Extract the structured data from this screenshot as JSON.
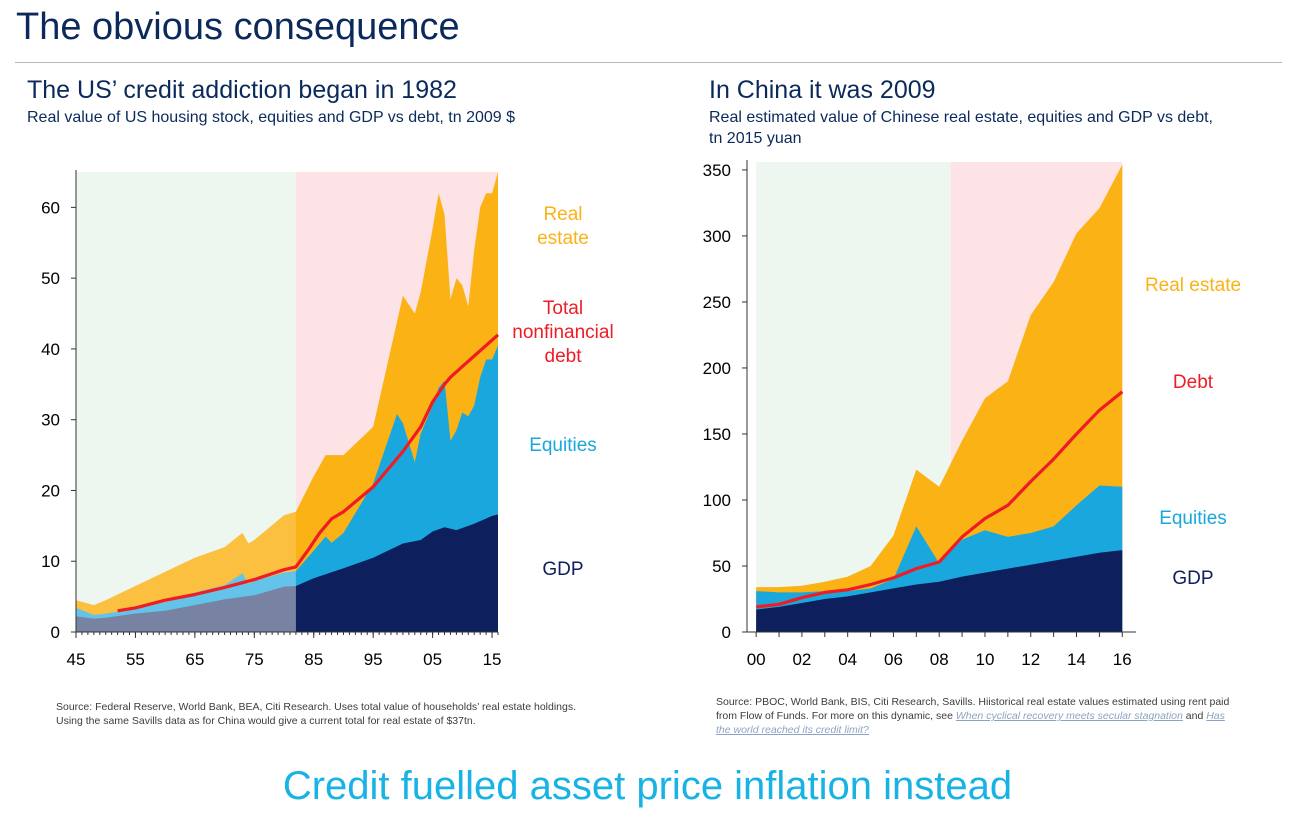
{
  "slide": {
    "title": "The obvious consequence",
    "takeaway": "Credit fuelled asset price inflation instead"
  },
  "us": {
    "title": "The US’ credit addiction began in 1982",
    "subtitle": "Real value of US housing stock, equities and GDP vs debt, tn 2009 $",
    "source": "Source: Federal Reserve, World Bank, BEA, Citi Research. Uses total value of households’ real estate holdings. Using the same Savills data as for China would give a current total for real estate of $37tn."
  },
  "china": {
    "title": "In China it was 2009",
    "subtitle": "Real estimated value of Chinese real  estate, equities and GDP vs debt, tn 2015 yuan",
    "source_text": "Source: PBOC, World Bank, BIS, Citi Research, Savills. Hiistorical real estate values estimated using rent paid from Flow of Funds. For more on this dynamic, see ",
    "source_link1": "When cyclical recovery meets secular stagnation",
    "source_and": " and ",
    "source_link2": "Has the world reached its credit limit?"
  },
  "colors": {
    "gdp": "#0d1f5c",
    "equities": "#1aa7dd",
    "real_estate": "#fbb215",
    "debt": "#ee1c25",
    "us_pre_bg": "#eef7ef",
    "us_post_bg": "#fde3e5",
    "text": "#0b2a5b",
    "takeaway": "#18b3e4"
  },
  "chart_data": [
    {
      "type": "area",
      "x_tick_labels": [
        "45",
        "55",
        "65",
        "75",
        "85",
        "95",
        "05",
        "15"
      ],
      "x_tick_years": [
        1945,
        1955,
        1965,
        1975,
        1985,
        1995,
        2005,
        2015
      ],
      "xlim": [
        1945,
        2016
      ],
      "ylim": [
        0,
        65
      ],
      "y_ticks": [
        0,
        10,
        20,
        30,
        40,
        50,
        60
      ],
      "shaded_periods": [
        {
          "from": 1945,
          "to": 1982,
          "color": "#eef7ef"
        },
        {
          "from": 1982,
          "to": 2016,
          "color": "#fde3e5"
        }
      ],
      "legend_labels": [
        {
          "series": "Real estate",
          "lines": [
            "Real",
            "estate"
          ],
          "color": "#fbb215"
        },
        {
          "series": "Total nonfinancial debt",
          "lines": [
            "Total",
            "nonfinancial",
            "debt"
          ],
          "color": "#ee1c25"
        },
        {
          "series": "Equities",
          "lines": [
            "Equities"
          ],
          "color": "#1aa7dd"
        },
        {
          "series": "GDP",
          "lines": [
            "GDP"
          ],
          "color": "#0d1f5c"
        }
      ],
      "series": [
        {
          "name": "GDP",
          "role": "stack",
          "color": "#0d1f5c",
          "x": [
            1945,
            1948,
            1950,
            1955,
            1960,
            1965,
            1970,
            1975,
            1980,
            1982,
            1985,
            1990,
            1995,
            2000,
            2003,
            2005,
            2007,
            2009,
            2010,
            2012,
            2015,
            2016
          ],
          "y": [
            2.2,
            1.9,
            2.0,
            2.6,
            3.0,
            3.8,
            4.6,
            5.2,
            6.4,
            6.5,
            7.6,
            9.0,
            10.5,
            12.5,
            13.0,
            14.2,
            14.8,
            14.4,
            14.7,
            15.3,
            16.4,
            16.6
          ]
        },
        {
          "name": "Equities",
          "role": "stack",
          "color": "#1aa7dd",
          "x": [
            1945,
            1948,
            1950,
            1955,
            1960,
            1965,
            1970,
            1973,
            1974,
            1975,
            1980,
            1982,
            1985,
            1987,
            1988,
            1990,
            1995,
            1999,
            2000,
            2002,
            2003,
            2005,
            2006,
            2007,
            2008,
            2009,
            2010,
            2011,
            2012,
            2013,
            2014,
            2015,
            2016
          ],
          "y": [
            3.4,
            2.4,
            2.6,
            3.3,
            4.2,
            5.6,
            6.6,
            8.3,
            6.8,
            7.2,
            8.4,
            8.6,
            11.5,
            13.5,
            12.6,
            14.0,
            21.0,
            30.8,
            29.5,
            24.0,
            28.0,
            32.0,
            34.5,
            35.5,
            27.0,
            28.5,
            31.0,
            30.5,
            32.0,
            36.0,
            38.5,
            38.5,
            40.5
          ]
        },
        {
          "name": "Real estate",
          "role": "stack",
          "color": "#fbb215",
          "x": [
            1945,
            1948,
            1950,
            1955,
            1960,
            1965,
            1970,
            1973,
            1974,
            1975,
            1980,
            1982,
            1985,
            1987,
            1990,
            1995,
            2000,
            2002,
            2003,
            2005,
            2006,
            2007,
            2008,
            2009,
            2010,
            2011,
            2012,
            2013,
            2014,
            2015,
            2016
          ],
          "y": [
            4.5,
            3.8,
            4.5,
            6.5,
            8.5,
            10.5,
            12.0,
            14.0,
            12.5,
            13.0,
            16.5,
            17.0,
            22.0,
            25.0,
            25.0,
            29.0,
            47.5,
            45.0,
            48.0,
            57.0,
            62.0,
            59.0,
            47.0,
            50.0,
            49.0,
            46.0,
            54.0,
            60.0,
            62.0,
            62.0,
            65.0
          ]
        },
        {
          "name": "Total nonfinancial debt",
          "role": "line",
          "color": "#ee1c25",
          "x": [
            1952,
            1955,
            1960,
            1965,
            1970,
            1975,
            1980,
            1982,
            1984,
            1986,
            1988,
            1990,
            1995,
            2000,
            2003,
            2005,
            2007,
            2008,
            2010,
            2012,
            2014,
            2016
          ],
          "y": [
            3.0,
            3.4,
            4.5,
            5.3,
            6.3,
            7.4,
            8.8,
            9.2,
            11.5,
            14.0,
            16.0,
            17.0,
            20.5,
            25.5,
            29.0,
            32.5,
            35.0,
            36.0,
            37.5,
            39.0,
            40.5,
            42.0
          ]
        }
      ]
    },
    {
      "type": "area",
      "x_tick_labels": [
        "00",
        "02",
        "04",
        "06",
        "08",
        "10",
        "12",
        "14",
        "16"
      ],
      "x_tick_years": [
        2000,
        2002,
        2004,
        2006,
        2008,
        2010,
        2012,
        2014,
        2016
      ],
      "xlim": [
        1999.6,
        2016.6
      ],
      "ylim": [
        0,
        356
      ],
      "y_ticks": [
        0,
        50,
        100,
        150,
        200,
        250,
        300,
        350
      ],
      "shaded_periods": [
        {
          "from": 2000,
          "to": 2008.5,
          "color": "#eef7ef"
        },
        {
          "from": 2008.5,
          "to": 2016,
          "color": "#fde3e5"
        }
      ],
      "legend_labels": [
        {
          "series": "Real estate",
          "lines": [
            "Real estate"
          ],
          "color": "#fbb215"
        },
        {
          "series": "Debt",
          "lines": [
            "Debt"
          ],
          "color": "#ee1c25"
        },
        {
          "series": "Equities",
          "lines": [
            "Equities"
          ],
          "color": "#1aa7dd"
        },
        {
          "series": "GDP",
          "lines": [
            "GDP"
          ],
          "color": "#0d1f5c"
        }
      ],
      "series": [
        {
          "name": "GDP",
          "role": "stack",
          "color": "#0d1f5c",
          "x": [
            2000,
            2001,
            2002,
            2003,
            2004,
            2005,
            2006,
            2007,
            2008,
            2009,
            2010,
            2011,
            2012,
            2013,
            2014,
            2015,
            2016
          ],
          "y": [
            17,
            19,
            22,
            25,
            27,
            30,
            33,
            36,
            38,
            42,
            45,
            48,
            51,
            54,
            57,
            60,
            62
          ]
        },
        {
          "name": "Equities",
          "role": "stack",
          "color": "#1aa7dd",
          "x": [
            2000,
            2001,
            2002,
            2003,
            2004,
            2005,
            2006,
            2007,
            2008,
            2009,
            2010,
            2011,
            2012,
            2013,
            2014,
            2015,
            2016
          ],
          "y": [
            31,
            30,
            30,
            31,
            31,
            33,
            40,
            80,
            52,
            70,
            77,
            72,
            75,
            80,
            96,
            111,
            110
          ]
        },
        {
          "name": "Real estate",
          "role": "stack",
          "color": "#fbb215",
          "x": [
            2000,
            2001,
            2002,
            2003,
            2004,
            2005,
            2006,
            2007,
            2008,
            2009,
            2010,
            2011,
            2012,
            2013,
            2014,
            2015,
            2016
          ],
          "y": [
            34,
            34,
            35,
            38,
            42,
            50,
            73,
            123,
            110,
            145,
            177,
            190,
            240,
            265,
            302,
            321,
            354
          ]
        },
        {
          "name": "Debt",
          "role": "line",
          "color": "#ee1c25",
          "x": [
            2000,
            2001,
            2002,
            2003,
            2004,
            2005,
            2006,
            2007,
            2008,
            2009,
            2010,
            2011,
            2012,
            2013,
            2014,
            2015,
            2016
          ],
          "y": [
            19,
            21,
            26,
            30,
            32,
            36,
            41,
            48,
            53,
            72,
            86,
            96,
            114,
            131,
            150,
            168,
            182
          ]
        }
      ]
    }
  ]
}
